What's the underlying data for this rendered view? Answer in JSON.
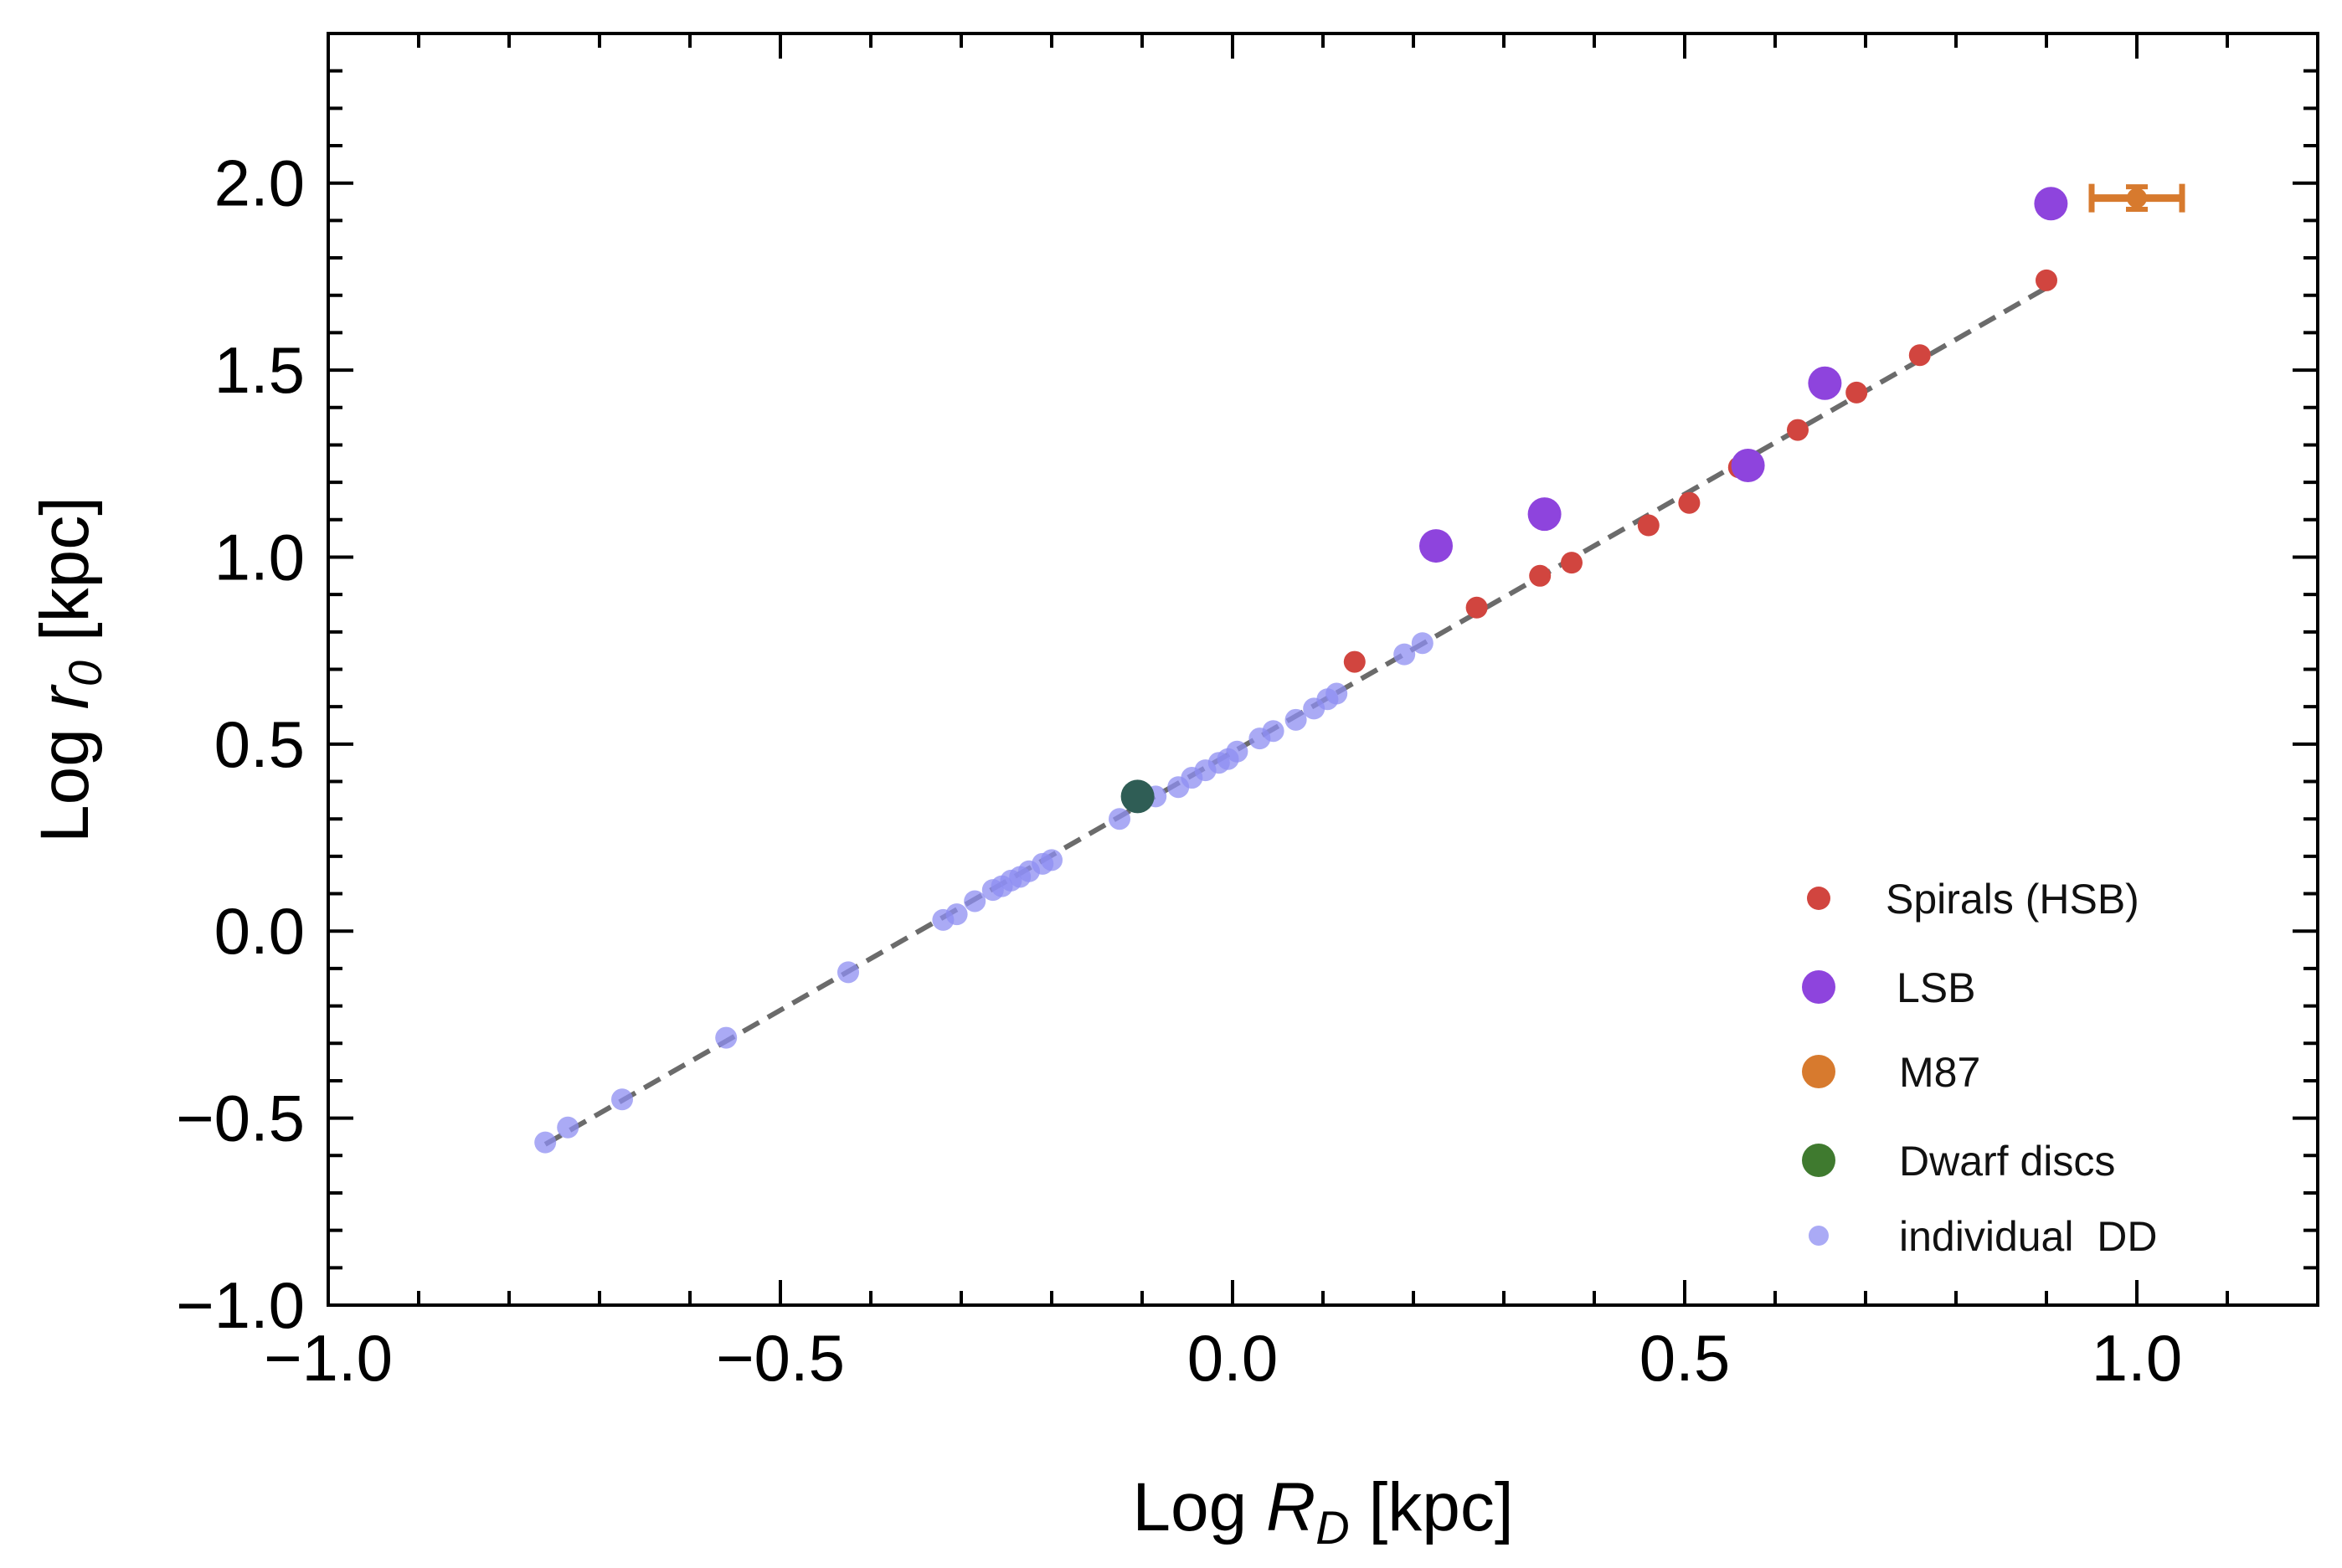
{
  "chart_data": {
    "type": "scatter",
    "title": "",
    "xlabel": {
      "prefix": "Log ",
      "var": "R",
      "sub": "D",
      "suffix": " [kpc]"
    },
    "ylabel": {
      "prefix": "Log ",
      "var": "r",
      "sub": "0",
      "suffix": " [kpc]"
    },
    "xlim": [
      -1.0,
      1.2
    ],
    "ylim": [
      -1.0,
      2.4
    ],
    "x_ticks": [
      -1.0,
      -0.5,
      0.0,
      0.5,
      1.0
    ],
    "x_tick_labels": [
      "−1.0",
      "−0.5",
      "0.0",
      "0.5",
      "1.0"
    ],
    "y_ticks": [
      -1.0,
      -0.5,
      0.0,
      0.5,
      1.0,
      1.5,
      2.0
    ],
    "y_tick_labels": [
      "−1.0",
      "−0.5",
      "0.0",
      "0.5",
      "1.0",
      "1.5",
      "2.0"
    ],
    "grid": false,
    "fit_line": {
      "style": "dashed",
      "color": "#6b6b6b",
      "x": [
        -0.76,
        0.9
      ],
      "y": [
        -0.57,
        1.72
      ]
    },
    "legend_position": "bottom-right",
    "series": [
      {
        "name": "Spirals (HSB)",
        "color": "#d1453f",
        "marker": "small",
        "points": [
          [
            0.135,
            0.72
          ],
          [
            0.27,
            0.865
          ],
          [
            0.34,
            0.95
          ],
          [
            0.375,
            0.985
          ],
          [
            0.46,
            1.085
          ],
          [
            0.505,
            1.145
          ],
          [
            0.56,
            1.24
          ],
          [
            0.625,
            1.34
          ],
          [
            0.69,
            1.44
          ],
          [
            0.76,
            1.54
          ],
          [
            0.9,
            1.74
          ]
        ]
      },
      {
        "name": "LSB",
        "color": "#8e44dd",
        "marker": "large",
        "points": [
          [
            0.225,
            1.03
          ],
          [
            0.345,
            1.115
          ],
          [
            0.57,
            1.245
          ],
          [
            0.655,
            1.465
          ],
          [
            0.905,
            1.945
          ]
        ]
      },
      {
        "name": "M87",
        "color": "#d77a2e",
        "marker": "errorbar",
        "points": [
          [
            1.0,
            1.96
          ]
        ],
        "x_err": 0.05,
        "y_err": 0.03
      },
      {
        "name": "Dwarf discs",
        "color": "#2f5d55",
        "legend_color": "#3f7a2f",
        "marker": "large",
        "points": [
          [
            -0.105,
            0.36
          ]
        ]
      },
      {
        "name": "individual  DD",
        "color": "#8e8ef2",
        "marker": "small-translucent",
        "points": [
          [
            -0.76,
            -0.565
          ],
          [
            -0.735,
            -0.525
          ],
          [
            -0.675,
            -0.45
          ],
          [
            -0.56,
            -0.285
          ],
          [
            -0.425,
            -0.11
          ],
          [
            -0.32,
            0.03
          ],
          [
            -0.305,
            0.045
          ],
          [
            -0.285,
            0.08
          ],
          [
            -0.265,
            0.11
          ],
          [
            -0.255,
            0.12
          ],
          [
            -0.245,
            0.135
          ],
          [
            -0.235,
            0.145
          ],
          [
            -0.225,
            0.16
          ],
          [
            -0.21,
            0.18
          ],
          [
            -0.2,
            0.19
          ],
          [
            -0.125,
            0.3
          ],
          [
            -0.085,
            0.36
          ],
          [
            -0.06,
            0.385
          ],
          [
            -0.045,
            0.41
          ],
          [
            -0.03,
            0.43
          ],
          [
            -0.015,
            0.45
          ],
          [
            -0.005,
            0.46
          ],
          [
            0.005,
            0.48
          ],
          [
            0.03,
            0.515
          ],
          [
            0.045,
            0.535
          ],
          [
            0.07,
            0.565
          ],
          [
            0.09,
            0.595
          ],
          [
            0.105,
            0.62
          ],
          [
            0.115,
            0.635
          ],
          [
            0.19,
            0.74
          ],
          [
            0.21,
            0.77
          ]
        ]
      }
    ]
  }
}
